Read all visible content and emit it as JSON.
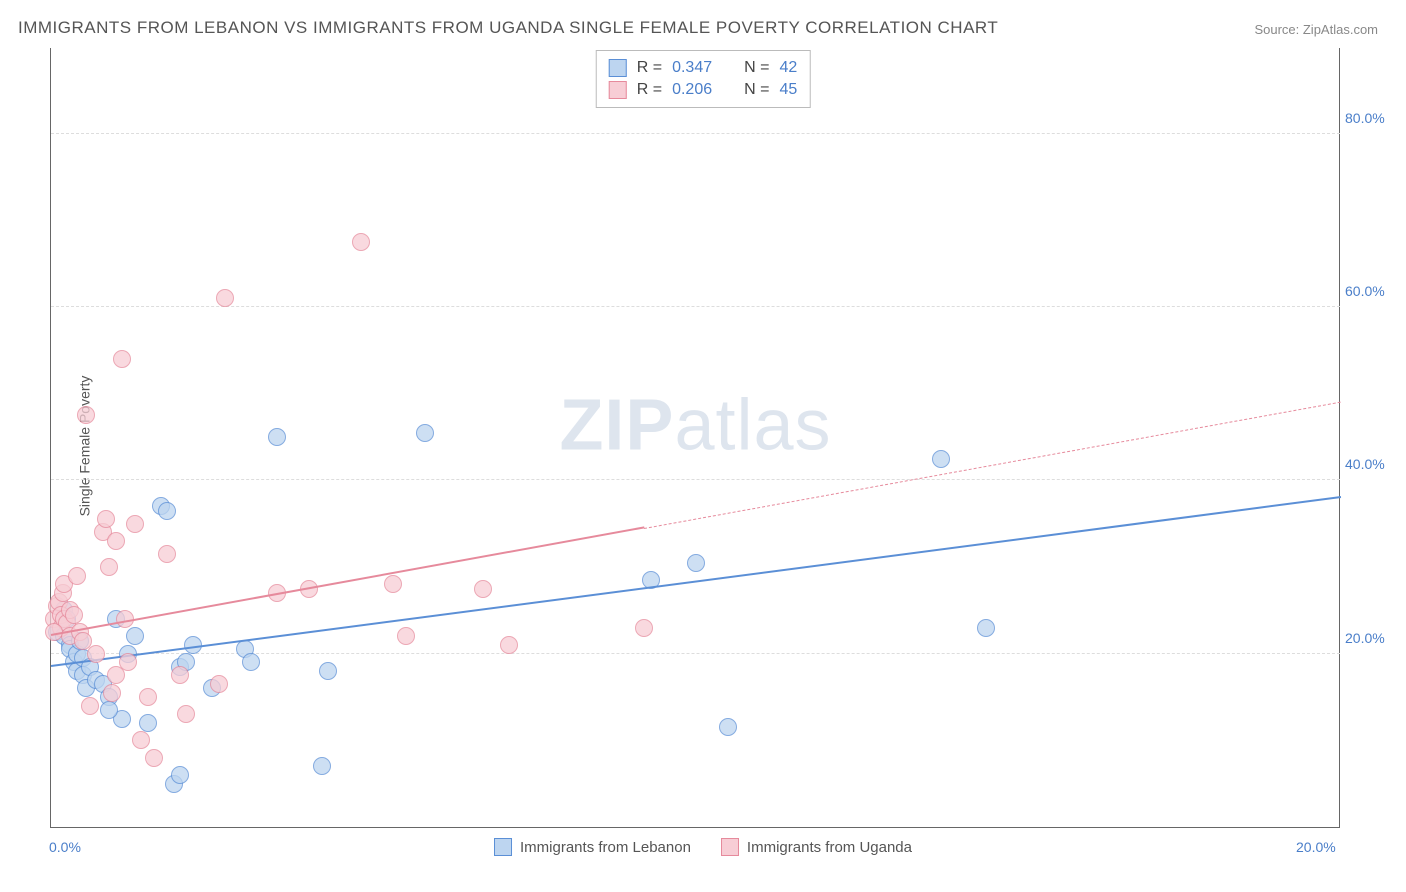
{
  "title": "IMMIGRANTS FROM LEBANON VS IMMIGRANTS FROM UGANDA SINGLE FEMALE POVERTY CORRELATION CHART",
  "source": "Source: ZipAtlas.com",
  "ylabel": "Single Female Poverty",
  "watermark_a": "ZIP",
  "watermark_b": "atlas",
  "chart": {
    "type": "scatter",
    "xlim": [
      0,
      20
    ],
    "ylim": [
      0,
      90
    ],
    "xticks": [
      0,
      20
    ],
    "xtick_labels": [
      "0.0%",
      "20.0%"
    ],
    "yticks": [
      20,
      40,
      60,
      80
    ],
    "ytick_labels": [
      "20.0%",
      "40.0%",
      "60.0%",
      "80.0%"
    ],
    "grid_color": "#dddddd",
    "axis_color": "#666666",
    "background": "#ffffff",
    "point_radius": 9,
    "series": [
      {
        "name": "Immigrants from Lebanon",
        "fill": "#bdd5f0",
        "stroke": "#5b8fd6",
        "r_value": "0.347",
        "n_value": "42",
        "trend": {
          "x1": 0,
          "y1": 18.5,
          "x2": 20,
          "y2": 38,
          "solid_until_x": 20
        },
        "points": [
          [
            0.1,
            22.5
          ],
          [
            0.2,
            25
          ],
          [
            0.2,
            22
          ],
          [
            0.25,
            24
          ],
          [
            0.3,
            21
          ],
          [
            0.3,
            20.5
          ],
          [
            0.35,
            19
          ],
          [
            0.4,
            20
          ],
          [
            0.4,
            18
          ],
          [
            0.45,
            21.5
          ],
          [
            0.5,
            17.5
          ],
          [
            0.5,
            19.5
          ],
          [
            0.55,
            16
          ],
          [
            0.6,
            18.5
          ],
          [
            0.7,
            17
          ],
          [
            0.8,
            16.5
          ],
          [
            0.9,
            15
          ],
          [
            1.0,
            24
          ],
          [
            1.1,
            12.5
          ],
          [
            1.2,
            20
          ],
          [
            1.3,
            22
          ],
          [
            1.7,
            37
          ],
          [
            1.8,
            36.5
          ],
          [
            1.9,
            5
          ],
          [
            2.0,
            6
          ],
          [
            2.0,
            18.5
          ],
          [
            2.1,
            19
          ],
          [
            2.2,
            21
          ],
          [
            2.5,
            16
          ],
          [
            3.0,
            20.5
          ],
          [
            3.1,
            19
          ],
          [
            3.5,
            45
          ],
          [
            4.2,
            7
          ],
          [
            4.3,
            18
          ],
          [
            5.8,
            45.5
          ],
          [
            9.3,
            28.5
          ],
          [
            10.0,
            30.5
          ],
          [
            10.5,
            11.5
          ],
          [
            13.8,
            42.5
          ],
          [
            14.5,
            23
          ],
          [
            1.5,
            12
          ],
          [
            0.9,
            13.5
          ]
        ]
      },
      {
        "name": "Immigrants from Uganda",
        "fill": "#f7cdd5",
        "stroke": "#e68a9c",
        "r_value": "0.206",
        "n_value": "45",
        "trend": {
          "x1": 0,
          "y1": 22,
          "x2": 20,
          "y2": 49,
          "solid_until_x": 9.2
        },
        "points": [
          [
            0.05,
            24
          ],
          [
            0.1,
            25.5
          ],
          [
            0.12,
            26
          ],
          [
            0.15,
            23
          ],
          [
            0.15,
            24.5
          ],
          [
            0.18,
            27
          ],
          [
            0.2,
            24
          ],
          [
            0.2,
            28
          ],
          [
            0.25,
            23.5
          ],
          [
            0.3,
            25
          ],
          [
            0.3,
            22
          ],
          [
            0.35,
            24.5
          ],
          [
            0.4,
            29
          ],
          [
            0.45,
            22.5
          ],
          [
            0.5,
            21.5
          ],
          [
            0.55,
            47.5
          ],
          [
            0.7,
            20
          ],
          [
            0.8,
            34
          ],
          [
            0.85,
            35.5
          ],
          [
            1.0,
            33
          ],
          [
            1.0,
            17.5
          ],
          [
            1.1,
            54
          ],
          [
            1.2,
            19
          ],
          [
            1.3,
            35
          ],
          [
            1.4,
            10
          ],
          [
            1.5,
            15
          ],
          [
            1.6,
            8
          ],
          [
            1.8,
            31.5
          ],
          [
            2.0,
            17.5
          ],
          [
            2.1,
            13
          ],
          [
            2.6,
            16.5
          ],
          [
            2.7,
            61
          ],
          [
            3.5,
            27
          ],
          [
            4.0,
            27.5
          ],
          [
            4.8,
            67.5
          ],
          [
            5.3,
            28
          ],
          [
            5.5,
            22
          ],
          [
            6.7,
            27.5
          ],
          [
            7.1,
            21
          ],
          [
            9.2,
            23
          ],
          [
            0.6,
            14
          ],
          [
            0.9,
            30
          ],
          [
            0.95,
            15.5
          ],
          [
            1.15,
            24
          ],
          [
            0.05,
            22.5
          ]
        ]
      }
    ]
  },
  "legend_top": {
    "r_label": "R =",
    "n_label": "N ="
  },
  "legend_bottom": {
    "series1_label": "Immigrants from Lebanon",
    "series2_label": "Immigrants from Uganda"
  }
}
